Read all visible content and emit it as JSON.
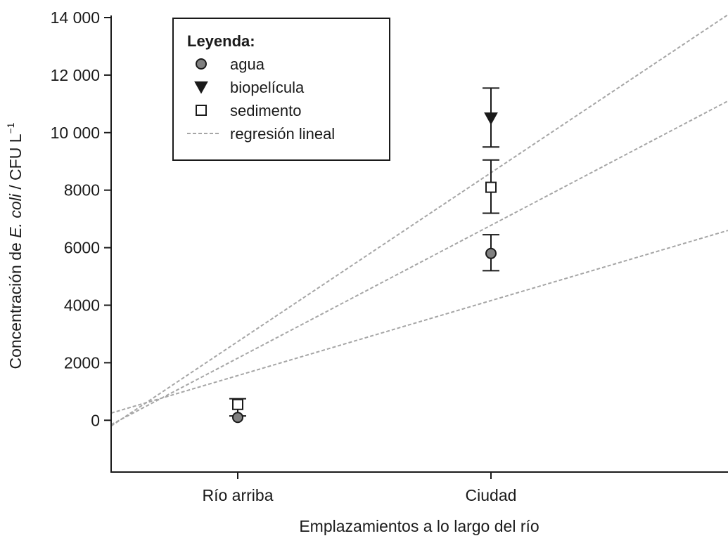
{
  "chart_data": {
    "type": "scatter",
    "xlabel": "Emplazamientos a lo largo del río",
    "ylabel": {
      "prefix": "Concentración de ",
      "italic": "E. coli",
      "suffix": " / CFU L",
      "superscript": "−1"
    },
    "categories": [
      "Río arriba",
      "Ciudad"
    ],
    "ylim": [
      -1800,
      14000
    ],
    "yticks": [
      0,
      2000,
      4000,
      6000,
      8000,
      10000,
      12000,
      14000
    ],
    "ytick_labels": [
      "0",
      "2000",
      "4000",
      "6000",
      "8000",
      "10 000",
      "12 000",
      "14 000"
    ],
    "series": [
      {
        "name": "agua",
        "marker": "circle",
        "points": [
          {
            "category": "Río arriba",
            "value": 100,
            "err_low": 0,
            "err_high": 0
          },
          {
            "category": "Ciudad",
            "value": 5800,
            "err_low": 5200,
            "err_high": 6450
          }
        ]
      },
      {
        "name": "biopelícula",
        "marker": "triangle-down",
        "points": [
          {
            "category": "Ciudad",
            "value": 10500,
            "err_low": 9500,
            "err_high": 11550
          }
        ]
      },
      {
        "name": "sedimento",
        "marker": "square",
        "points": [
          {
            "category": "Río arriba",
            "value": 550,
            "err_low": 150,
            "err_high": 750
          },
          {
            "category": "Ciudad",
            "value": 8100,
            "err_low": 7200,
            "err_high": 9050
          }
        ]
      }
    ],
    "regression_lines": [
      {
        "start_value": 250,
        "end_value": 6600
      },
      {
        "start_value": -150,
        "end_value": 11100
      },
      {
        "start_value": -200,
        "end_value": 14100
      }
    ],
    "legend": {
      "title": "Leyenda:",
      "placement": "top-left",
      "entries": [
        {
          "label": "agua",
          "marker": "circle"
        },
        {
          "label": "biopelícula",
          "marker": "triangle-down"
        },
        {
          "label": "sedimento",
          "marker": "square"
        },
        {
          "label": "regresión lineal",
          "marker": "dashed-line"
        }
      ]
    },
    "grid": false,
    "colors": {
      "axis": "#1a1a1a",
      "circle_fill": "#808080",
      "triangle_fill": "#1a1a1a",
      "square_fill": "#ffffff",
      "regression": "#a6a6a6"
    }
  }
}
